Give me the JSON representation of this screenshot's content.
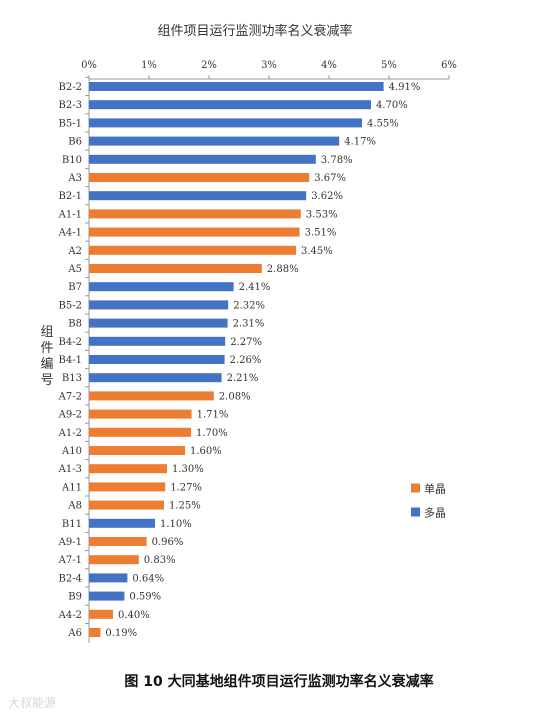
{
  "figure_caption": "图 10 大同基地组件项目运行监测功率名义衰减率",
  "watermark": "大叔能源",
  "chart_data": {
    "type": "bar",
    "orientation": "horizontal",
    "title": "组件项目运行监测功率名义衰减率",
    "xlabel": "",
    "ylabel": "组件编号",
    "xlim": [
      0,
      6
    ],
    "x_ticks": [
      "0%",
      "1%",
      "2%",
      "3%",
      "4%",
      "5%",
      "6%"
    ],
    "grid": false,
    "legend_position": "right",
    "colors": {
      "单晶": "#ED7D31",
      "多晶": "#4472C4"
    },
    "legend": [
      {
        "name": "单晶",
        "color": "#ED7D31"
      },
      {
        "name": "多晶",
        "color": "#4472C4"
      }
    ],
    "categories": [
      "B2-2",
      "B2-3",
      "B5-1",
      "B6",
      "B10",
      "A3",
      "B2-1",
      "A1-1",
      "A4-1",
      "A2",
      "A5",
      "B7",
      "B5-2",
      "B8",
      "B4-2",
      "B4-1",
      "B13",
      "A7-2",
      "A9-2",
      "A1-2",
      "A10",
      "A1-3",
      "A11",
      "A8",
      "B11",
      "A9-1",
      "A7-1",
      "B2-4",
      "B9",
      "A4-2",
      "A6"
    ],
    "values": [
      4.91,
      4.7,
      4.55,
      4.17,
      3.78,
      3.67,
      3.62,
      3.53,
      3.51,
      3.45,
      2.88,
      2.41,
      2.32,
      2.31,
      2.27,
      2.26,
      2.21,
      2.08,
      1.71,
      1.7,
      1.6,
      1.3,
      1.27,
      1.25,
      1.1,
      0.96,
      0.83,
      0.64,
      0.59,
      0.4,
      0.19
    ],
    "value_labels": [
      "4.91%",
      "4.70%",
      "4.55%",
      "4.17%",
      "3.78%",
      "3.67%",
      "3.62%",
      "3.53%",
      "3.51%",
      "3.45%",
      "2.88%",
      "2.41%",
      "2.32%",
      "2.31%",
      "2.27%",
      "2.26%",
      "2.21%",
      "2.08%",
      "1.71%",
      "1.70%",
      "1.60%",
      "1.30%",
      "1.27%",
      "1.25%",
      "1.10%",
      "0.96%",
      "0.83%",
      "0.64%",
      "0.59%",
      "0.40%",
      "0.19%"
    ],
    "series_type": [
      "多晶",
      "多晶",
      "多晶",
      "多晶",
      "多晶",
      "单晶",
      "多晶",
      "单晶",
      "单晶",
      "单晶",
      "单晶",
      "多晶",
      "多晶",
      "多晶",
      "多晶",
      "多晶",
      "多晶",
      "单晶",
      "单晶",
      "单晶",
      "单晶",
      "单晶",
      "单晶",
      "单晶",
      "多晶",
      "单晶",
      "单晶",
      "多晶",
      "多晶",
      "单晶",
      "单晶"
    ]
  }
}
